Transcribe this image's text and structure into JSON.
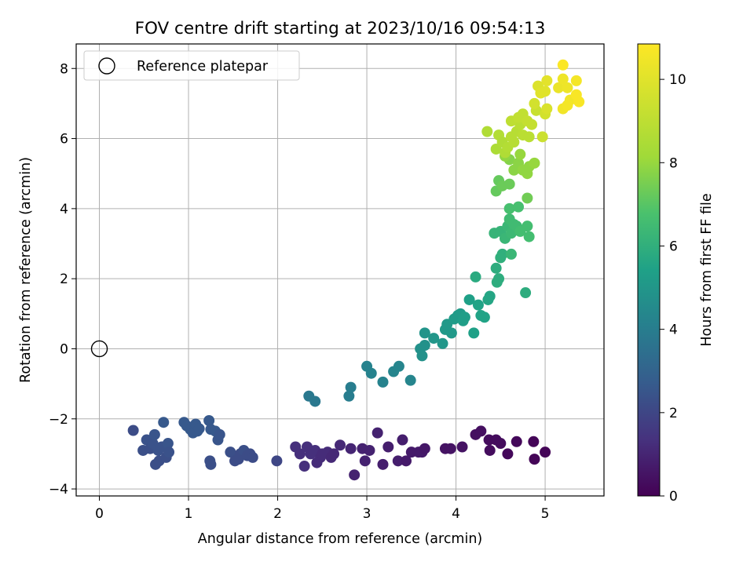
{
  "chart_data": {
    "type": "scatter",
    "title": "FOV centre drift starting at 2023/10/16 09:54:13",
    "xlabel": "Angular distance from reference (arcmin)",
    "ylabel": "Rotation from reference (arcmin)",
    "xlim": [
      -0.26,
      5.66
    ],
    "ylim": [
      -4.2,
      8.7
    ],
    "xticks": [
      "0",
      "1",
      "2",
      "3",
      "4",
      "5"
    ],
    "yticks": [
      "−4",
      "−2",
      "0",
      "2",
      "4",
      "6",
      "8"
    ],
    "grid": true,
    "legend": {
      "placement": "top-left",
      "entries": [
        "Reference platepar"
      ]
    },
    "reference_point": {
      "x": 0.0,
      "y": 0.0
    },
    "colorbar": {
      "label": "Hours from first FF file",
      "range": [
        0,
        10.85
      ],
      "ticks": [
        "0",
        "2",
        "4",
        "6",
        "8",
        "10"
      ],
      "colormap": "viridis"
    },
    "points": [
      [
        0.38,
        -2.33,
        2.2
      ],
      [
        0.49,
        -2.9,
        2.3
      ],
      [
        0.53,
        -2.6,
        2.4
      ],
      [
        0.57,
        -2.85,
        2.3
      ],
      [
        0.6,
        -2.7,
        2.4
      ],
      [
        0.62,
        -2.45,
        2.5
      ],
      [
        0.63,
        -3.3,
        2.3
      ],
      [
        0.66,
        -2.9,
        2.4
      ],
      [
        0.67,
        -3.2,
        2.3
      ],
      [
        0.7,
        -2.8,
        2.4
      ],
      [
        0.72,
        -2.1,
        2.6
      ],
      [
        0.75,
        -3.1,
        2.3
      ],
      [
        0.77,
        -2.7,
        2.5
      ],
      [
        0.78,
        -2.95,
        2.4
      ],
      [
        0.95,
        -2.1,
        2.6
      ],
      [
        0.98,
        -2.2,
        2.6
      ],
      [
        1.02,
        -2.3,
        2.6
      ],
      [
        1.05,
        -2.4,
        2.6
      ],
      [
        1.08,
        -2.15,
        2.6
      ],
      [
        1.1,
        -2.35,
        2.6
      ],
      [
        1.12,
        -2.28,
        2.6
      ],
      [
        1.23,
        -2.05,
        2.6
      ],
      [
        1.25,
        -2.3,
        2.6
      ],
      [
        1.3,
        -2.35,
        2.6
      ],
      [
        1.33,
        -2.6,
        2.5
      ],
      [
        1.35,
        -2.45,
        2.5
      ],
      [
        1.24,
        -3.2,
        2.3
      ],
      [
        1.25,
        -3.3,
        2.3
      ],
      [
        1.47,
        -2.95,
        2.3
      ],
      [
        1.52,
        -3.2,
        2.2
      ],
      [
        1.56,
        -3.15,
        2.2
      ],
      [
        1.58,
        -3.0,
        2.2
      ],
      [
        1.62,
        -2.9,
        2.3
      ],
      [
        1.66,
        -3.05,
        2.2
      ],
      [
        1.69,
        -3.0,
        2.2
      ],
      [
        1.72,
        -3.1,
        2.2
      ],
      [
        1.99,
        -3.2,
        2.0
      ],
      [
        2.2,
        -2.8,
        1.3
      ],
      [
        2.25,
        -3.0,
        1.3
      ],
      [
        2.3,
        -3.35,
        1.3
      ],
      [
        2.33,
        -2.8,
        1.3
      ],
      [
        2.37,
        -3.0,
        1.3
      ],
      [
        2.42,
        -2.9,
        1.3
      ],
      [
        2.44,
        -3.25,
        1.2
      ],
      [
        2.48,
        -3.1,
        1.2
      ],
      [
        2.5,
        -3.0,
        1.2
      ],
      [
        2.56,
        -2.95,
        1.2
      ],
      [
        2.6,
        -3.1,
        1.1
      ],
      [
        2.63,
        -3.0,
        1.1
      ],
      [
        2.7,
        -2.75,
        1.1
      ],
      [
        2.82,
        -2.85,
        1.0
      ],
      [
        2.86,
        -3.6,
        0.9
      ],
      [
        2.95,
        -2.85,
        0.9
      ],
      [
        2.98,
        -3.2,
        0.9
      ],
      [
        3.03,
        -2.9,
        0.9
      ],
      [
        3.12,
        -2.4,
        0.9
      ],
      [
        3.18,
        -3.3,
        0.8
      ],
      [
        3.24,
        -2.8,
        0.8
      ],
      [
        3.35,
        -3.2,
        0.8
      ],
      [
        3.4,
        -2.6,
        0.8
      ],
      [
        3.44,
        -3.2,
        0.7
      ],
      [
        3.5,
        -2.95,
        0.7
      ],
      [
        3.58,
        -2.95,
        0.7
      ],
      [
        3.62,
        -2.95,
        0.7
      ],
      [
        3.65,
        -2.85,
        0.6
      ],
      [
        3.88,
        -2.85,
        0.5
      ],
      [
        3.94,
        -2.85,
        0.5
      ],
      [
        4.07,
        -2.8,
        0.5
      ],
      [
        4.22,
        -2.45,
        0.4
      ],
      [
        4.28,
        -2.35,
        0.4
      ],
      [
        4.37,
        -2.6,
        0.3
      ],
      [
        4.38,
        -2.9,
        0.3
      ],
      [
        4.45,
        -2.6,
        0.3
      ],
      [
        4.5,
        -2.7,
        0.3
      ],
      [
        4.58,
        -3.0,
        0.2
      ],
      [
        4.68,
        -2.65,
        0.2
      ],
      [
        4.87,
        -2.65,
        0.1
      ],
      [
        4.88,
        -3.15,
        0.1
      ],
      [
        5.0,
        -2.95,
        0.1
      ],
      [
        2.35,
        -1.35,
        3.8
      ],
      [
        2.42,
        -1.5,
        3.8
      ],
      [
        2.8,
        -1.35,
        4.0
      ],
      [
        2.82,
        -1.1,
        4.0
      ],
      [
        3.0,
        -0.5,
        4.2
      ],
      [
        3.05,
        -0.7,
        4.2
      ],
      [
        3.18,
        -0.95,
        4.2
      ],
      [
        3.3,
        -0.65,
        4.3
      ],
      [
        3.36,
        -0.5,
        4.3
      ],
      [
        3.49,
        -0.9,
        4.3
      ],
      [
        3.6,
        0.0,
        4.8
      ],
      [
        3.62,
        -0.2,
        4.8
      ],
      [
        3.65,
        0.1,
        4.8
      ],
      [
        3.65,
        0.45,
        4.9
      ],
      [
        3.75,
        0.3,
        5.0
      ],
      [
        3.85,
        0.15,
        5.0
      ],
      [
        3.88,
        0.55,
        5.1
      ],
      [
        3.9,
        0.7,
        5.1
      ],
      [
        3.95,
        0.45,
        5.1
      ],
      [
        3.98,
        0.85,
        5.2
      ],
      [
        4.02,
        0.95,
        5.2
      ],
      [
        4.05,
        1.0,
        5.2
      ],
      [
        4.08,
        0.8,
        5.3
      ],
      [
        4.1,
        0.9,
        5.3
      ],
      [
        4.15,
        1.4,
        5.4
      ],
      [
        4.2,
        0.45,
        5.4
      ],
      [
        4.25,
        1.25,
        5.5
      ],
      [
        4.28,
        0.95,
        5.5
      ],
      [
        4.32,
        0.9,
        5.5
      ],
      [
        4.38,
        1.5,
        5.6
      ],
      [
        4.36,
        1.4,
        5.6
      ],
      [
        4.22,
        2.05,
        5.8
      ],
      [
        4.45,
        2.3,
        5.9
      ],
      [
        4.48,
        2.0,
        5.9
      ],
      [
        4.52,
        2.7,
        6.0
      ],
      [
        4.46,
        1.9,
        5.9
      ],
      [
        4.78,
        1.6,
        5.9
      ],
      [
        4.5,
        2.6,
        6.0
      ],
      [
        4.43,
        3.3,
        6.2
      ],
      [
        4.5,
        3.35,
        6.2
      ],
      [
        4.55,
        3.15,
        6.3
      ],
      [
        4.58,
        3.5,
        6.3
      ],
      [
        4.62,
        3.3,
        6.4
      ],
      [
        4.62,
        2.7,
        6.3
      ],
      [
        4.6,
        3.7,
        6.5
      ],
      [
        4.65,
        3.55,
        6.5
      ],
      [
        4.68,
        3.5,
        6.5
      ],
      [
        4.72,
        3.35,
        6.6
      ],
      [
        4.8,
        3.5,
        6.6
      ],
      [
        4.82,
        3.2,
        6.6
      ],
      [
        4.6,
        4.0,
        6.7
      ],
      [
        4.7,
        4.05,
        6.7
      ],
      [
        4.45,
        4.5,
        7.2
      ],
      [
        4.48,
        4.8,
        7.2
      ],
      [
        4.52,
        4.65,
        7.3
      ],
      [
        4.6,
        4.7,
        7.3
      ],
      [
        4.8,
        4.3,
        7.4
      ],
      [
        4.6,
        5.4,
        7.7
      ],
      [
        4.65,
        5.1,
        7.8
      ],
      [
        4.7,
        5.3,
        7.8
      ],
      [
        4.75,
        5.1,
        7.9
      ],
      [
        4.8,
        5.0,
        7.9
      ],
      [
        4.82,
        5.2,
        7.9
      ],
      [
        4.88,
        5.3,
        8.0
      ],
      [
        4.55,
        5.5,
        7.9
      ],
      [
        4.72,
        5.55,
        8.0
      ],
      [
        4.35,
        6.2,
        8.6
      ],
      [
        4.45,
        5.7,
        8.5
      ],
      [
        4.48,
        6.1,
        8.7
      ],
      [
        4.52,
        5.9,
        8.6
      ],
      [
        4.55,
        5.6,
        8.6
      ],
      [
        4.58,
        5.75,
        8.7
      ],
      [
        4.62,
        6.05,
        8.8
      ],
      [
        4.65,
        5.9,
        8.8
      ],
      [
        4.68,
        6.2,
        8.8
      ],
      [
        4.72,
        6.4,
        8.9
      ],
      [
        4.75,
        6.1,
        8.9
      ],
      [
        4.82,
        6.05,
        8.9
      ],
      [
        4.62,
        6.5,
        9.0
      ],
      [
        4.7,
        6.6,
        9.1
      ],
      [
        4.75,
        6.7,
        9.1
      ],
      [
        4.8,
        6.5,
        9.2
      ],
      [
        4.85,
        6.4,
        9.2
      ],
      [
        4.9,
        6.8,
        9.3
      ],
      [
        4.97,
        6.05,
        9.4
      ],
      [
        4.88,
        7.0,
        9.6
      ],
      [
        5.0,
        6.7,
        9.6
      ],
      [
        5.02,
        6.85,
        9.8
      ],
      [
        4.92,
        7.5,
        9.9
      ],
      [
        4.95,
        7.3,
        10.0
      ],
      [
        5.0,
        7.35,
        10.0
      ],
      [
        5.02,
        7.65,
        10.1
      ],
      [
        5.15,
        7.45,
        10.3
      ],
      [
        5.2,
        7.7,
        10.4
      ],
      [
        5.25,
        7.45,
        10.4
      ],
      [
        5.28,
        7.1,
        10.5
      ],
      [
        5.2,
        6.85,
        10.5
      ],
      [
        5.25,
        6.95,
        10.6
      ],
      [
        5.35,
        7.65,
        10.6
      ],
      [
        5.35,
        7.25,
        10.7
      ],
      [
        5.38,
        7.05,
        10.7
      ],
      [
        5.2,
        8.1,
        10.8
      ]
    ]
  }
}
